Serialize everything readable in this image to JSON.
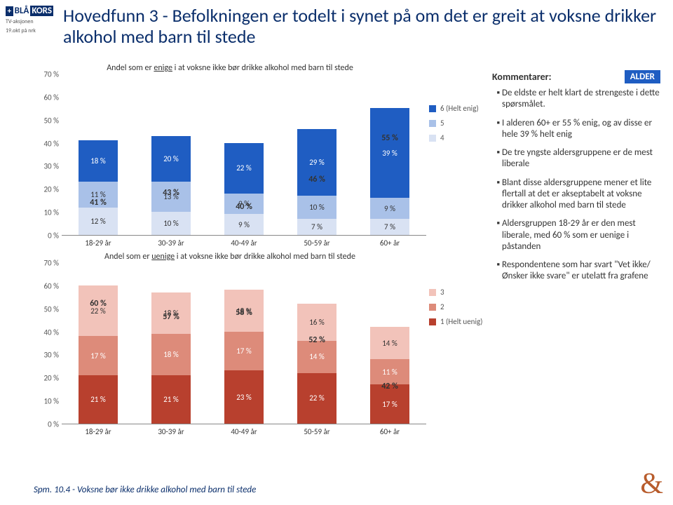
{
  "logo": {
    "brand": "BLÅ",
    "brand2": "KORS",
    "sub1": "TV-aksjonen",
    "sub2": "19.okt på nrk"
  },
  "title": "Hovedfunn 3 - Befolkningen er todelt i synet på om det er greit at voksne drikker alkohol med barn til stede",
  "badge": "ALDER",
  "comments_header": "Kommentarer:",
  "comments": [
    "De eldste er helt klart de strengeste i dette spørsmålet.",
    "I alderen 60+ er 55 % enig, og av disse er hele 39 % helt enig",
    "De tre yngste aldersgruppene er de mest liberale",
    "Blant disse aldersgruppene mener et lite flertall at det er akseptabelt at voksne drikker alkohol med barn til stede",
    "Aldersgruppen 18-29 år er den mest liberale, med 60 % som er uenige i påstanden",
    "Respondentene som har svart \"Vet ikke/Ønsker ikke svare\" er utelatt fra grafene"
  ],
  "footer": "Spm. 10.4 - Voksne bør ikke drikke alkohol med barn til stede",
  "chart1": {
    "title_pre": "Andel som er ",
    "title_u": "enige",
    "title_post": " i at voksne ikke bør drikke alkohol med barn til stede",
    "ymax": 70,
    "ystep": 10,
    "categories": [
      "18-29 år",
      "30-39 år",
      "40-49 år",
      "50-59 år",
      "60+ år"
    ],
    "series": [
      {
        "key": "6 (Helt enig)",
        "color": "#1f5dc2",
        "text": "light",
        "values": [
          18,
          20,
          22,
          29,
          39
        ]
      },
      {
        "key": "5",
        "color": "#a9c1e8",
        "text": "dark",
        "values": [
          11,
          13,
          9,
          10,
          9
        ]
      },
      {
        "key": "4",
        "color": "#d9e2f3",
        "text": "dark",
        "values": [
          12,
          10,
          9,
          7,
          7
        ]
      }
    ],
    "totals": [
      41,
      43,
      40,
      46,
      55
    ]
  },
  "chart2": {
    "title_pre": "Andel som er ",
    "title_u": "uenige",
    "title_post": " i at voksne ikke bør drikke alkohol med barn til stede",
    "ymax": 70,
    "ystep": 10,
    "categories": [
      "18-29 år",
      "30-39 år",
      "40-49 år",
      "50-59 år",
      "60+ år"
    ],
    "series": [
      {
        "key": "3",
        "color": "#f2c3ba",
        "text": "dark",
        "values": [
          22,
          18,
          18,
          16,
          14
        ]
      },
      {
        "key": "2",
        "color": "#dd8b7a",
        "text": "light",
        "values": [
          17,
          18,
          17,
          14,
          11
        ]
      },
      {
        "key": "1 (Helt uenig)",
        "color": "#b8402e",
        "text": "light",
        "values": [
          21,
          21,
          23,
          22,
          17
        ]
      }
    ],
    "totals": [
      60,
      57,
      58,
      52,
      42
    ]
  }
}
